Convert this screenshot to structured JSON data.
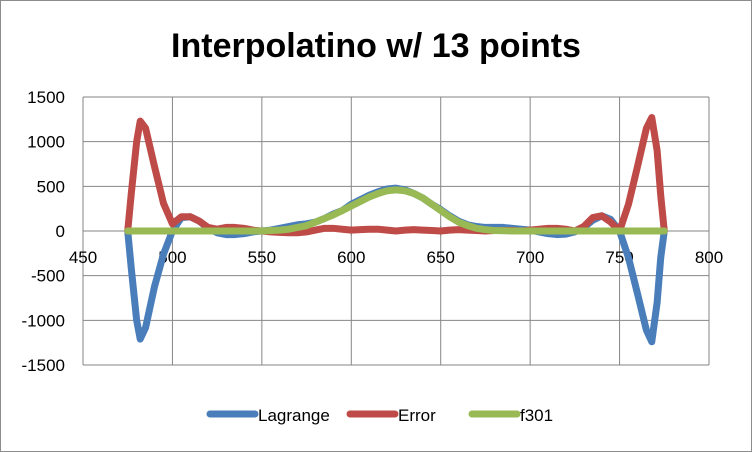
{
  "chart_data": {
    "type": "line",
    "title": "Interpolatino w/ 13 points",
    "xlabel": "",
    "ylabel": "",
    "xlim": [
      450,
      800
    ],
    "ylim": [
      -1500,
      1500
    ],
    "x_ticks": [
      "450",
      "500",
      "550",
      "600",
      "650",
      "700",
      "750",
      "800"
    ],
    "y_ticks": [
      "1500",
      "1000",
      "500",
      "0",
      "-500",
      "-1000",
      "-1500"
    ],
    "grid": "vertical and horizontal major gridlines",
    "legend_position": "bottom",
    "series": [
      {
        "name": "Lagrange",
        "color": "#4a7ebb",
        "points": [
          [
            475,
            0
          ],
          [
            477,
            -420
          ],
          [
            480,
            -1000
          ],
          [
            482,
            -1210
          ],
          [
            485,
            -1080
          ],
          [
            490,
            -620
          ],
          [
            495,
            -260
          ],
          [
            500,
            0
          ],
          [
            505,
            150
          ],
          [
            510,
            160
          ],
          [
            515,
            110
          ],
          [
            520,
            30
          ],
          [
            525,
            -20
          ],
          [
            530,
            -40
          ],
          [
            535,
            -40
          ],
          [
            540,
            -30
          ],
          [
            545,
            -10
          ],
          [
            550,
            0
          ],
          [
            555,
            10
          ],
          [
            560,
            30
          ],
          [
            565,
            50
          ],
          [
            570,
            70
          ],
          [
            575,
            80
          ],
          [
            580,
            100
          ],
          [
            585,
            140
          ],
          [
            590,
            190
          ],
          [
            595,
            230
          ],
          [
            600,
            300
          ],
          [
            605,
            350
          ],
          [
            610,
            400
          ],
          [
            615,
            440
          ],
          [
            620,
            470
          ],
          [
            625,
            480
          ],
          [
            630,
            460
          ],
          [
            635,
            420
          ],
          [
            640,
            370
          ],
          [
            645,
            300
          ],
          [
            650,
            240
          ],
          [
            655,
            170
          ],
          [
            660,
            110
          ],
          [
            665,
            70
          ],
          [
            670,
            50
          ],
          [
            675,
            40
          ],
          [
            680,
            40
          ],
          [
            685,
            40
          ],
          [
            690,
            30
          ],
          [
            695,
            20
          ],
          [
            700,
            10
          ],
          [
            705,
            -10
          ],
          [
            710,
            -30
          ],
          [
            715,
            -40
          ],
          [
            720,
            -35
          ],
          [
            725,
            -10
          ],
          [
            730,
            40
          ],
          [
            735,
            120
          ],
          [
            740,
            170
          ],
          [
            745,
            130
          ],
          [
            750,
            0
          ],
          [
            755,
            -300
          ],
          [
            760,
            -700
          ],
          [
            765,
            -1110
          ],
          [
            768,
            -1240
          ],
          [
            771,
            -800
          ],
          [
            773,
            -300
          ],
          [
            775,
            0
          ]
        ]
      },
      {
        "name": "Error",
        "color": "#be4b48",
        "points": [
          [
            475,
            0
          ],
          [
            477,
            420
          ],
          [
            480,
            1000
          ],
          [
            482,
            1230
          ],
          [
            485,
            1150
          ],
          [
            490,
            720
          ],
          [
            495,
            310
          ],
          [
            500,
            80
          ],
          [
            505,
            160
          ],
          [
            510,
            160
          ],
          [
            515,
            110
          ],
          [
            520,
            40
          ],
          [
            525,
            20
          ],
          [
            530,
            40
          ],
          [
            535,
            40
          ],
          [
            540,
            30
          ],
          [
            545,
            10
          ],
          [
            550,
            0
          ],
          [
            555,
            -10
          ],
          [
            560,
            -15
          ],
          [
            565,
            -20
          ],
          [
            570,
            -20
          ],
          [
            575,
            -10
          ],
          [
            580,
            10
          ],
          [
            585,
            30
          ],
          [
            590,
            30
          ],
          [
            595,
            20
          ],
          [
            600,
            10
          ],
          [
            605,
            15
          ],
          [
            610,
            20
          ],
          [
            615,
            20
          ],
          [
            620,
            10
          ],
          [
            625,
            0
          ],
          [
            630,
            10
          ],
          [
            635,
            15
          ],
          [
            640,
            10
          ],
          [
            645,
            5
          ],
          [
            650,
            0
          ],
          [
            655,
            10
          ],
          [
            660,
            15
          ],
          [
            665,
            10
          ],
          [
            670,
            5
          ],
          [
            675,
            0
          ],
          [
            680,
            5
          ],
          [
            685,
            5
          ],
          [
            690,
            5
          ],
          [
            695,
            0
          ],
          [
            700,
            10
          ],
          [
            705,
            20
          ],
          [
            710,
            30
          ],
          [
            715,
            30
          ],
          [
            720,
            20
          ],
          [
            725,
            0
          ],
          [
            730,
            50
          ],
          [
            735,
            150
          ],
          [
            740,
            170
          ],
          [
            745,
            100
          ],
          [
            750,
            0
          ],
          [
            755,
            300
          ],
          [
            760,
            720
          ],
          [
            765,
            1150
          ],
          [
            768,
            1270
          ],
          [
            771,
            900
          ],
          [
            773,
            400
          ],
          [
            775,
            0
          ]
        ]
      },
      {
        "name": "f301",
        "color": "#98b954",
        "points": [
          [
            475,
            0
          ],
          [
            500,
            0
          ],
          [
            525,
            0
          ],
          [
            550,
            0
          ],
          [
            560,
            10
          ],
          [
            565,
            20
          ],
          [
            570,
            40
          ],
          [
            575,
            60
          ],
          [
            580,
            100
          ],
          [
            585,
            140
          ],
          [
            590,
            180
          ],
          [
            595,
            230
          ],
          [
            600,
            280
          ],
          [
            605,
            330
          ],
          [
            610,
            380
          ],
          [
            615,
            420
          ],
          [
            620,
            450
          ],
          [
            625,
            460
          ],
          [
            630,
            450
          ],
          [
            635,
            420
          ],
          [
            640,
            370
          ],
          [
            645,
            300
          ],
          [
            650,
            230
          ],
          [
            655,
            160
          ],
          [
            660,
            100
          ],
          [
            665,
            60
          ],
          [
            670,
            30
          ],
          [
            675,
            15
          ],
          [
            680,
            5
          ],
          [
            690,
            0
          ],
          [
            700,
            0
          ],
          [
            725,
            0
          ],
          [
            750,
            0
          ],
          [
            775,
            0
          ]
        ]
      }
    ]
  }
}
